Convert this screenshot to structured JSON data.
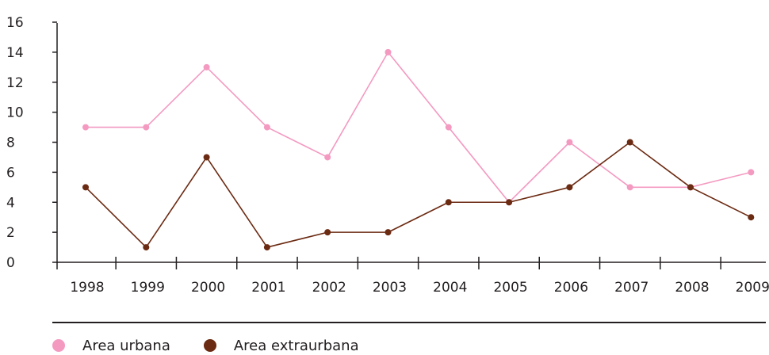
{
  "colors": {
    "urbana": "#f49ac1",
    "extraurbana": "#6b2a12",
    "axis": "#231f20"
  },
  "chart_data": {
    "type": "line",
    "title": "",
    "xlabel": "",
    "ylabel": "",
    "categories": [
      "1998",
      "1999",
      "2000",
      "2001",
      "2002",
      "2003",
      "2004",
      "2005",
      "2006",
      "2007",
      "2008",
      "2009"
    ],
    "ylim": [
      0,
      16
    ],
    "yticks": [
      "0",
      "2",
      "4",
      "6",
      "8",
      "10",
      "12",
      "14",
      "16"
    ],
    "grid": false,
    "legend_position": "bottom-left",
    "series": [
      {
        "name": "Area urbana",
        "values": [
          9,
          9,
          13,
          9,
          7,
          14,
          9,
          4,
          8,
          5,
          5,
          6
        ]
      },
      {
        "name": "Area extraurbana",
        "values": [
          5,
          1,
          7,
          1,
          2,
          2,
          4,
          4,
          5,
          8,
          5,
          3
        ]
      }
    ]
  }
}
